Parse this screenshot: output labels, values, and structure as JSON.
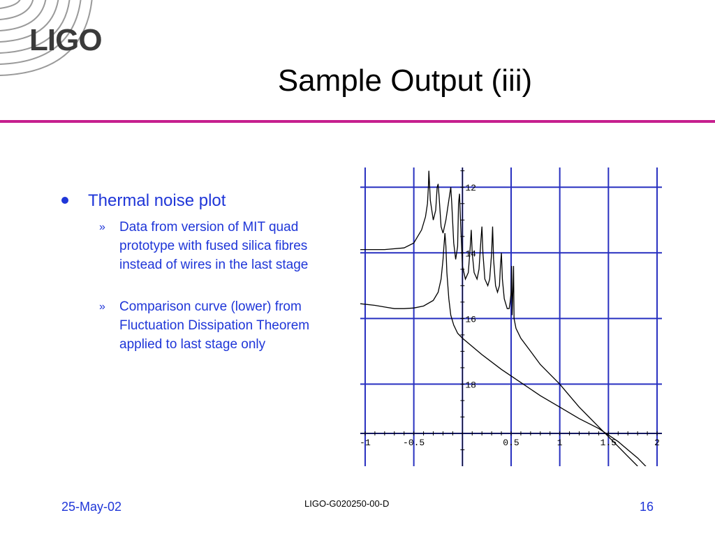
{
  "header": {
    "logo_text": "LIGO",
    "title": "Sample Output (iii)"
  },
  "body": {
    "bullet": "Thermal noise plot",
    "sub_bullet_marker": "»",
    "sub_bullets": [
      "Data from version of MIT quad prototype with fused silica fibres instead of wires in the last stage",
      "Comparison curve (lower) from Fluctuation Dissipation Theorem applied to last stage only"
    ]
  },
  "colors": {
    "text_blue": "#1f36d8",
    "rule_magenta": "#c61f8e",
    "grid_blue": "#2830c0",
    "curve": "#000000"
  },
  "chart_data": {
    "type": "line",
    "xlim": [
      -1.05,
      2.05
    ],
    "ylim": [
      -20.5,
      -11.4
    ],
    "x_ticks": [
      -1,
      -0.5,
      0,
      0.5,
      1,
      1.5,
      2
    ],
    "x_tick_labels": [
      "-1",
      "-0.5",
      "",
      "0.5",
      "1",
      "1.5",
      "2"
    ],
    "y_ticks": [
      -12,
      -14,
      -16,
      -18
    ],
    "y_tick_labels": [
      "12",
      "14",
      "16",
      "18"
    ],
    "grid_x": [
      -1,
      -0.5,
      0,
      0.5,
      1,
      1.5,
      2
    ],
    "grid_y": [
      -11.2,
      -12,
      -14,
      -16,
      -18,
      -19.5
    ],
    "grid": true,
    "axes_cross_at": {
      "x": 0,
      "y": -19.5
    },
    "series": [
      {
        "points": [
          [
            -1.05,
            -13.9
          ],
          [
            -0.8,
            -13.9
          ],
          [
            -0.6,
            -13.85
          ],
          [
            -0.5,
            -13.7
          ],
          [
            -0.42,
            -13.3
          ],
          [
            -0.38,
            -12.9
          ],
          [
            -0.36,
            -12.5
          ],
          [
            -0.35,
            -12.0
          ],
          [
            -0.345,
            -11.5
          ],
          [
            -0.33,
            -12.4
          ],
          [
            -0.3,
            -13.0
          ],
          [
            -0.275,
            -12.7
          ],
          [
            -0.26,
            -12.0
          ],
          [
            -0.25,
            -11.9
          ],
          [
            -0.24,
            -12.3
          ],
          [
            -0.22,
            -13.2
          ],
          [
            -0.2,
            -13.4
          ],
          [
            -0.17,
            -13.0
          ],
          [
            -0.15,
            -12.6
          ],
          [
            -0.13,
            -12.2
          ],
          [
            -0.12,
            -12.0
          ],
          [
            -0.11,
            -12.5
          ],
          [
            -0.09,
            -13.7
          ],
          [
            -0.07,
            -14.2
          ],
          [
            -0.05,
            -13.8
          ],
          [
            -0.04,
            -12.5
          ],
          [
            -0.03,
            -12.2
          ],
          [
            -0.02,
            -13.0
          ],
          [
            0.0,
            -14.4
          ],
          [
            0.03,
            -14.8
          ],
          [
            0.06,
            -14.6
          ],
          [
            0.08,
            -13.8
          ],
          [
            0.09,
            -13.3
          ],
          [
            0.1,
            -14.0
          ],
          [
            0.12,
            -14.6
          ],
          [
            0.15,
            -14.8
          ],
          [
            0.17,
            -14.5
          ],
          [
            0.19,
            -13.6
          ],
          [
            0.2,
            -13.2
          ],
          [
            0.21,
            -14.0
          ],
          [
            0.23,
            -14.8
          ],
          [
            0.26,
            -15.0
          ],
          [
            0.28,
            -14.8
          ],
          [
            0.3,
            -14.0
          ],
          [
            0.31,
            -13.2
          ],
          [
            0.32,
            -14.2
          ],
          [
            0.34,
            -15.0
          ],
          [
            0.36,
            -15.2
          ],
          [
            0.38,
            -15.0
          ],
          [
            0.39,
            -14.4
          ],
          [
            0.4,
            -14.0
          ],
          [
            0.41,
            -14.8
          ],
          [
            0.43,
            -15.4
          ],
          [
            0.46,
            -15.7
          ],
          [
            0.48,
            -15.7
          ],
          [
            0.49,
            -15.5
          ],
          [
            0.5,
            -15.2
          ],
          [
            0.505,
            -14.4
          ],
          [
            0.51,
            -15.9
          ],
          [
            0.52,
            -15.0
          ],
          [
            0.525,
            -14.4
          ],
          [
            0.53,
            -16.0
          ],
          [
            0.55,
            -16.3
          ],
          [
            0.6,
            -16.6
          ],
          [
            0.7,
            -17.0
          ],
          [
            0.8,
            -17.4
          ],
          [
            0.9,
            -17.7
          ],
          [
            1.0,
            -18.0
          ],
          [
            1.1,
            -18.35
          ],
          [
            1.2,
            -18.7
          ],
          [
            1.3,
            -19.0
          ],
          [
            1.4,
            -19.3
          ],
          [
            1.5,
            -19.6
          ],
          [
            1.6,
            -19.9
          ],
          [
            1.7,
            -20.2
          ],
          [
            1.8,
            -20.5
          ]
        ]
      },
      {
        "points": [
          [
            -1.05,
            -15.55
          ],
          [
            -0.9,
            -15.6
          ],
          [
            -0.8,
            -15.65
          ],
          [
            -0.7,
            -15.7
          ],
          [
            -0.6,
            -15.7
          ],
          [
            -0.5,
            -15.68
          ],
          [
            -0.4,
            -15.62
          ],
          [
            -0.3,
            -15.45
          ],
          [
            -0.25,
            -15.2
          ],
          [
            -0.22,
            -14.8
          ],
          [
            -0.2,
            -14.2
          ],
          [
            -0.19,
            -13.8
          ],
          [
            -0.18,
            -13.4
          ],
          [
            -0.17,
            -13.8
          ],
          [
            -0.16,
            -14.6
          ],
          [
            -0.14,
            -15.4
          ],
          [
            -0.12,
            -15.9
          ],
          [
            -0.09,
            -16.2
          ],
          [
            -0.05,
            -16.45
          ],
          [
            0.0,
            -16.6
          ],
          [
            0.2,
            -17.1
          ],
          [
            0.4,
            -17.55
          ],
          [
            0.6,
            -17.95
          ],
          [
            0.8,
            -18.35
          ],
          [
            1.0,
            -18.7
          ],
          [
            1.2,
            -19.05
          ],
          [
            1.4,
            -19.35
          ],
          [
            1.5,
            -19.55
          ],
          [
            1.6,
            -19.75
          ],
          [
            1.7,
            -20.0
          ],
          [
            1.8,
            -20.25
          ],
          [
            1.9,
            -20.55
          ],
          [
            2.0,
            -20.85
          ]
        ]
      }
    ]
  },
  "footer": {
    "date": "25-May-02",
    "doc_id": "LIGO-G020250-00-D",
    "page": "16"
  }
}
